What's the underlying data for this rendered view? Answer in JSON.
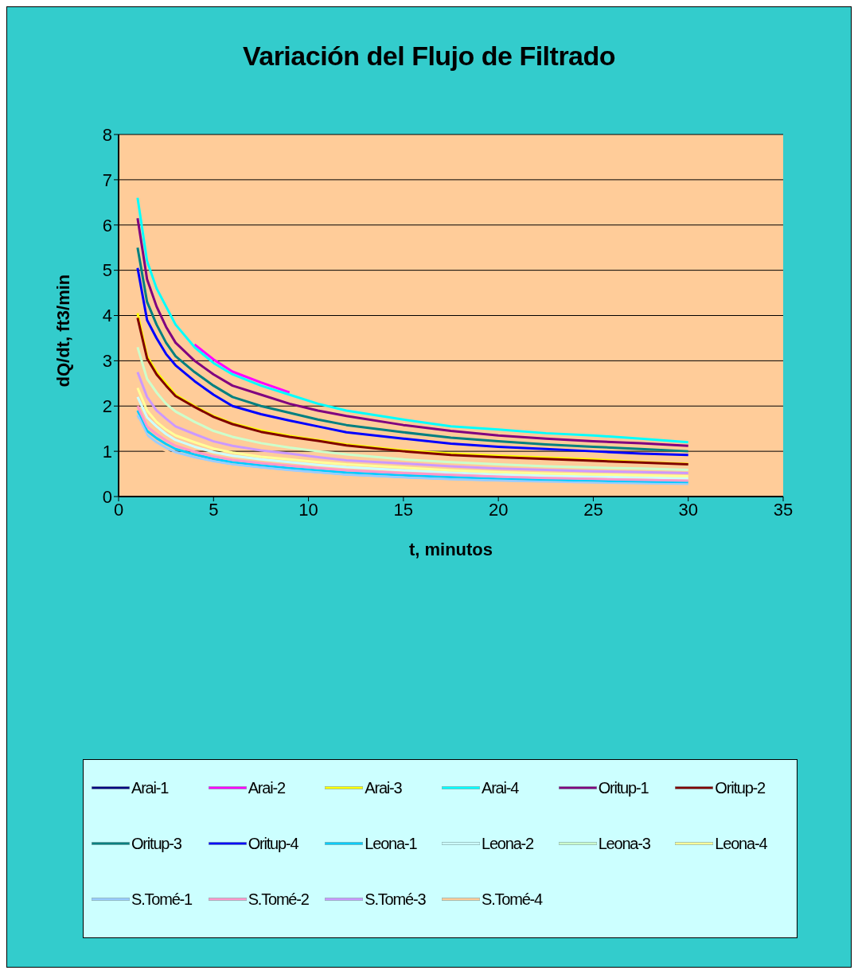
{
  "chart_data": {
    "type": "line",
    "title": "Variación del Flujo de Filtrado",
    "xlabel": "t, minutos",
    "ylabel": "dQ/dt, ft3/min",
    "x": [
      1,
      1.5,
      2,
      2.5,
      3,
      4,
      5,
      6,
      7.5,
      9,
      10.5,
      12,
      15,
      17.5,
      20,
      22.5,
      25,
      27.5,
      30
    ],
    "xlim": [
      0,
      35
    ],
    "xticks": [
      0,
      5,
      10,
      15,
      20,
      25,
      30,
      35
    ],
    "ylim": [
      0,
      8
    ],
    "yticks": [
      0,
      1,
      2,
      3,
      4,
      5,
      6,
      7,
      8
    ],
    "grid": "y",
    "legend": "bottom",
    "marker": "none",
    "line_style": "solid",
    "series": [
      {
        "name": "Arai-1",
        "color": "#000080",
        "values": [
          null,
          null,
          null,
          null,
          null,
          null,
          null,
          null,
          null,
          null,
          null,
          null,
          null,
          null,
          null,
          null,
          null,
          null,
          null
        ]
      },
      {
        "name": "Arai-2",
        "color": "#ff00ff",
        "values": [
          null,
          null,
          null,
          null,
          null,
          3.36,
          3.03,
          2.76,
          2.52,
          2.3,
          null,
          null,
          null,
          null,
          null,
          null,
          null,
          null,
          null
        ]
      },
      {
        "name": "Arai-3",
        "color": "#ffff00",
        "values": [
          4.05,
          3.1,
          2.75,
          2.5,
          2.25,
          2.0,
          1.78,
          1.62,
          1.46,
          1.34,
          1.25,
          1.15,
          1.02,
          0.95,
          0.9,
          0.86,
          0.82,
          0.76,
          0.72
        ]
      },
      {
        "name": "Arai-4",
        "color": "#00ffff",
        "values": [
          6.6,
          5.2,
          4.6,
          4.2,
          3.8,
          3.3,
          2.95,
          2.7,
          2.45,
          2.25,
          2.05,
          1.9,
          1.7,
          1.55,
          1.48,
          1.4,
          1.35,
          1.28,
          1.2
        ]
      },
      {
        "name": "Oritup-1",
        "color": "#800080",
        "values": [
          6.15,
          4.8,
          4.2,
          3.75,
          3.4,
          3.0,
          2.7,
          2.45,
          2.25,
          2.05,
          1.9,
          1.78,
          1.58,
          1.45,
          1.35,
          1.28,
          1.22,
          1.18,
          1.12
        ]
      },
      {
        "name": "Oritup-2",
        "color": "#800000",
        "values": [
          3.95,
          3.05,
          2.7,
          2.45,
          2.22,
          1.98,
          1.76,
          1.6,
          1.43,
          1.32,
          1.23,
          1.13,
          1.0,
          0.92,
          0.87,
          0.83,
          0.79,
          0.75,
          0.71
        ]
      },
      {
        "name": "Oritup-3",
        "color": "#008080",
        "values": [
          5.5,
          4.3,
          3.8,
          3.4,
          3.1,
          2.75,
          2.45,
          2.2,
          2.0,
          1.85,
          1.7,
          1.58,
          1.42,
          1.3,
          1.22,
          1.15,
          1.1,
          1.05,
          1.0
        ]
      },
      {
        "name": "Oritup-4",
        "color": "#0000ff",
        "values": [
          5.05,
          3.9,
          3.5,
          3.15,
          2.9,
          2.55,
          2.25,
          2.0,
          1.82,
          1.68,
          1.55,
          1.42,
          1.28,
          1.17,
          1.1,
          1.05,
          1.0,
          0.95,
          0.92
        ]
      },
      {
        "name": "Leona-1",
        "color": "#00ccff",
        "values": [
          1.9,
          1.45,
          1.29,
          1.16,
          1.05,
          0.93,
          0.83,
          0.76,
          0.69,
          0.63,
          0.58,
          0.53,
          0.47,
          0.43,
          0.39,
          0.37,
          0.35,
          0.33,
          0.31
        ]
      },
      {
        "name": "Leona-2",
        "color": "#ccffff",
        "values": [
          2.2,
          1.75,
          1.55,
          1.38,
          1.25,
          1.1,
          0.98,
          0.9,
          0.82,
          0.76,
          0.7,
          0.65,
          0.58,
          0.53,
          0.49,
          0.46,
          0.44,
          0.42,
          0.4
        ]
      },
      {
        "name": "Leona-3",
        "color": "#ccffcc",
        "values": [
          3.3,
          2.6,
          2.3,
          2.05,
          1.88,
          1.65,
          1.45,
          1.32,
          1.18,
          1.08,
          1.0,
          0.93,
          0.82,
          0.76,
          0.71,
          0.67,
          0.64,
          0.62,
          0.59
        ]
      },
      {
        "name": "Leona-4",
        "color": "#ffff99",
        "values": [
          2.4,
          1.9,
          1.65,
          1.48,
          1.35,
          1.2,
          1.06,
          0.97,
          0.88,
          0.82,
          0.76,
          0.71,
          0.64,
          0.58,
          0.54,
          0.51,
          0.49,
          0.47,
          0.45
        ]
      },
      {
        "name": "S.Tomé-1",
        "color": "#99ccff",
        "values": [
          1.8,
          1.36,
          1.2,
          1.08,
          0.98,
          0.87,
          0.78,
          0.71,
          0.64,
          0.58,
          0.53,
          0.48,
          0.42,
          0.38,
          0.35,
          0.32,
          0.3,
          0.28,
          0.27
        ]
      },
      {
        "name": "S.Tomé-2",
        "color": "#ff99cc",
        "values": [
          2.0,
          1.55,
          1.38,
          1.24,
          1.12,
          0.99,
          0.89,
          0.81,
          0.74,
          0.68,
          0.63,
          0.58,
          0.52,
          0.48,
          0.44,
          0.41,
          0.39,
          0.37,
          0.35
        ]
      },
      {
        "name": "S.Tomé-3",
        "color": "#cc99ff",
        "values": [
          2.75,
          2.2,
          1.9,
          1.72,
          1.55,
          1.38,
          1.22,
          1.12,
          1.02,
          0.95,
          0.87,
          0.8,
          0.73,
          0.67,
          0.62,
          0.59,
          0.56,
          0.54,
          0.52
        ]
      },
      {
        "name": "S.Tomé-4",
        "color": "#ffcc99",
        "values": [
          1.7,
          1.27,
          1.12,
          1.01,
          0.91,
          0.81,
          0.72,
          0.66,
          0.59,
          0.53,
          0.48,
          0.43,
          0.37,
          0.33,
          0.3,
          0.28,
          0.26,
          0.24,
          0.23
        ]
      }
    ]
  }
}
